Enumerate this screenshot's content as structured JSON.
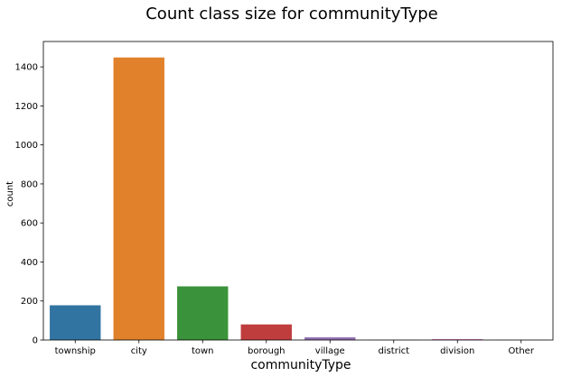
{
  "chart_data": {
    "type": "bar",
    "title": "Count class size for communityType",
    "xlabel": "communityType",
    "ylabel": "count",
    "categories": [
      "township",
      "city",
      "town",
      "borough",
      "village",
      "district",
      "division",
      "Other"
    ],
    "values": [
      178,
      1448,
      275,
      80,
      14,
      1,
      5,
      1
    ],
    "colors": [
      "#3274a1",
      "#e1812c",
      "#3a923a",
      "#c03d3e",
      "#9372b2",
      "#845b53",
      "#d684bd",
      "#7f7f7f"
    ],
    "ylim": [
      0,
      1530
    ],
    "yticks": [
      0,
      200,
      400,
      600,
      800,
      1000,
      1200,
      1400
    ],
    "grid": false,
    "legend": "none"
  }
}
